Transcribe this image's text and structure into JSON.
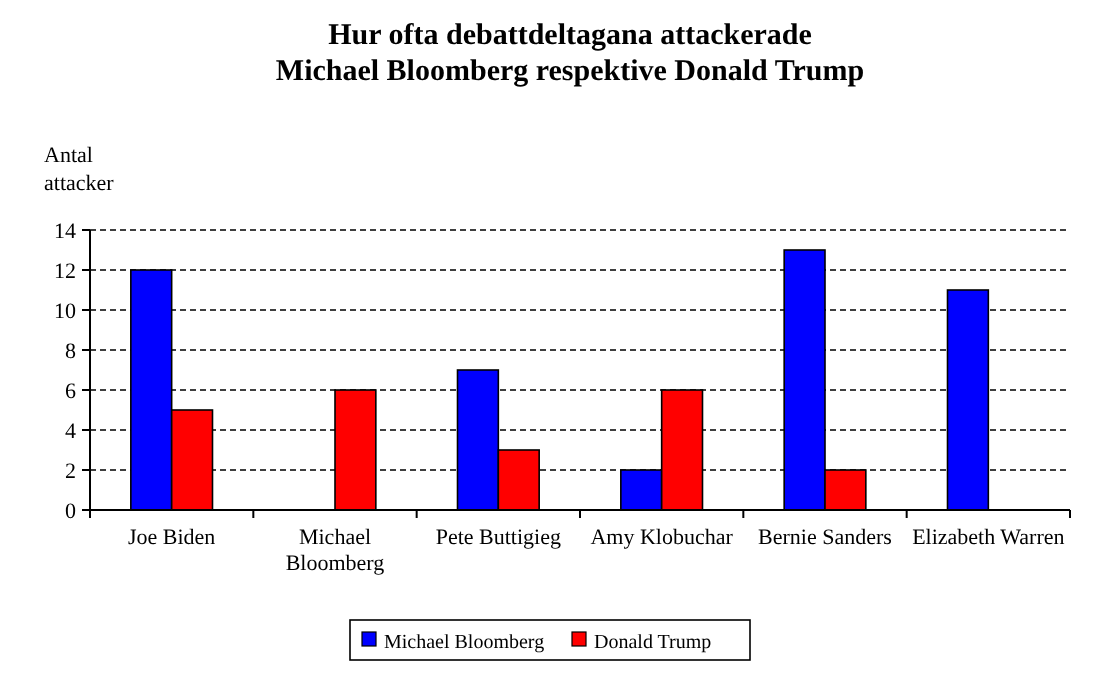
{
  "chart_data": {
    "type": "bar",
    "title": "Hur ofta debattdeltagana attackerade\nMichael Bloomberg respektive Donald Trump",
    "ylabel": "Antal\nattacker",
    "categories": [
      "Joe Biden",
      "Michael Bloomberg",
      "Pete Buttigieg",
      "Amy Klobuchar",
      "Bernie Sanders",
      "Elizabeth Warren"
    ],
    "series": [
      {
        "name": "Michael Bloomberg",
        "color": "#0000ff",
        "values": [
          12,
          0,
          7,
          2,
          13,
          11
        ]
      },
      {
        "name": "Donald Trump",
        "color": "#ff0000",
        "values": [
          5,
          6,
          3,
          6,
          2,
          0
        ]
      }
    ],
    "ylim": [
      0,
      14
    ],
    "yticks": [
      0,
      2,
      4,
      6,
      8,
      10,
      12,
      14
    ],
    "grid": "y",
    "legend": "bottom"
  }
}
